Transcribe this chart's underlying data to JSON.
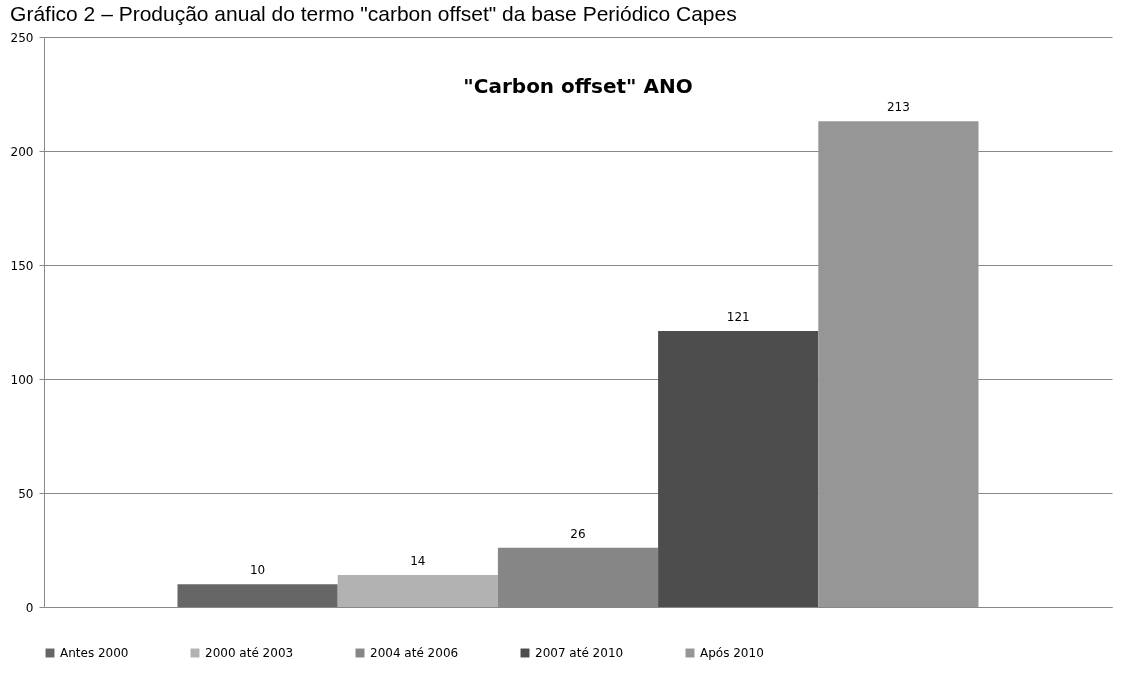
{
  "chart_data": {
    "type": "bar",
    "title": "Gráfico 2 – Produção anual do termo \"carbon offset\" da base Periódico Capes",
    "subtitle": "\"Carbon offset\" ANO",
    "categories": [
      null
    ],
    "series": [
      {
        "name": "Antes 2000",
        "color": "#666666",
        "values": [
          10
        ]
      },
      {
        "name": "2000 até 2003",
        "color": "#b2b2b2",
        "values": [
          14
        ]
      },
      {
        "name": "2004 até 2006",
        "color": "#868686",
        "values": [
          26
        ]
      },
      {
        "name": "2007 até 2010",
        "color": "#4d4d4d",
        "values": [
          121
        ]
      },
      {
        "name": "Após 2010",
        "color": "#969696",
        "values": [
          213
        ]
      }
    ],
    "ylim": [
      0,
      250
    ],
    "yticks": [
      0,
      50,
      100,
      150,
      200,
      250
    ],
    "grid": "y",
    "legend": "bottom",
    "data_labels": true,
    "tick_labels": "y"
  }
}
